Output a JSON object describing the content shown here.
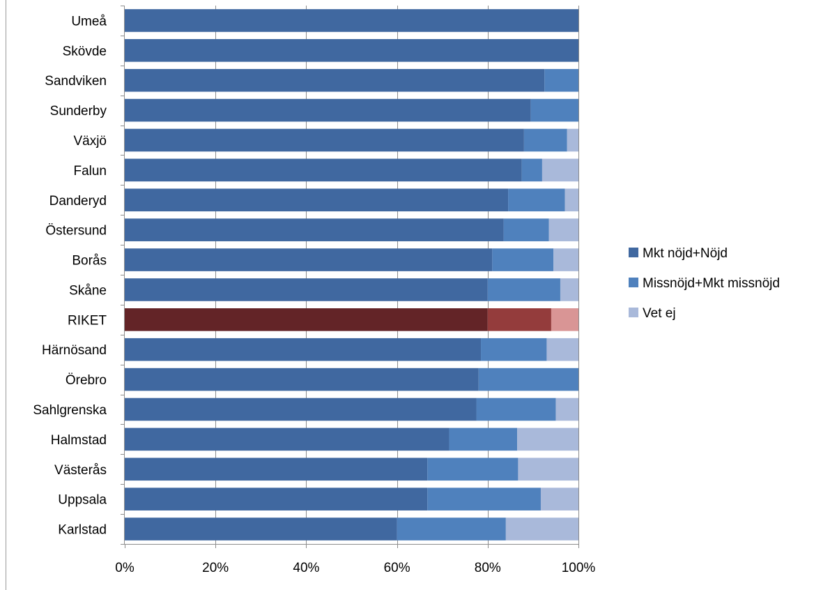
{
  "chart_data": {
    "type": "bar",
    "orientation": "horizontal",
    "stacked": "percent",
    "categories": [
      "Umeå",
      "Skövde",
      "Sandviken",
      "Sunderby",
      "Växjö",
      "Falun",
      "Danderyd",
      "Östersund",
      "Borås",
      "Skåne",
      "RIKET",
      "Härnösand",
      "Örebro",
      "Sahlgrenska",
      "Halmstad",
      "Västerås",
      "Uppsala",
      "Karlstad"
    ],
    "series": [
      {
        "name": "Mkt nöjd+Nöjd",
        "values": [
          100,
          100,
          92.5,
          89.5,
          88,
          87.5,
          84.5,
          83.5,
          81,
          80,
          80,
          78.5,
          78,
          77.5,
          71.5,
          66.7,
          66.7,
          60
        ],
        "color": "#4068A0"
      },
      {
        "name": "Missnöjd+Mkt missnöjd",
        "values": [
          0,
          0,
          7.5,
          10.5,
          9.5,
          4.5,
          12.5,
          10,
          13.5,
          16,
          14,
          14.5,
          22,
          17.5,
          15,
          20,
          25,
          24
        ],
        "color": "#4F81BD"
      },
      {
        "name": "Vet ej",
        "values": [
          0,
          0,
          0,
          0,
          2.5,
          8,
          3,
          6.5,
          5.5,
          4,
          6,
          7,
          0,
          5,
          13.5,
          13.3,
          8.3,
          16
        ],
        "color": "#A9B9DA"
      }
    ],
    "highlight": {
      "category": "RIKET",
      "colors": [
        "#632427",
        "#943C3C",
        "#D99595"
      ]
    },
    "xlim": [
      0,
      100
    ],
    "x_ticks": [
      "0%",
      "20%",
      "40%",
      "60%",
      "80%",
      "100%"
    ],
    "grid": "vertical",
    "legend_position": "right",
    "title": "",
    "xlabel": "",
    "ylabel": ""
  }
}
